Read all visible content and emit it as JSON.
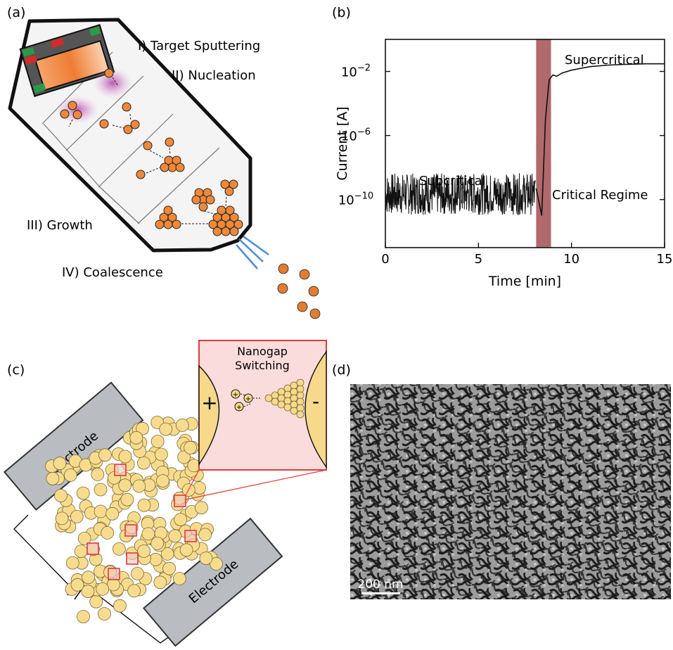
{
  "panel_a": {
    "letter": "(a)",
    "stage1": "I) Target Sputtering",
    "stage2": "II) Nucleation",
    "stage3": "III) Growth",
    "stage4": "IV) Coalescence"
  },
  "panel_b": {
    "letter": "(b)",
    "label_sub": "Subcritical",
    "label_crit": "Critical Regime",
    "label_super": "Supercritical"
  },
  "panel_c": {
    "letter": "(c)",
    "inset_title_1": "Nanogap",
    "inset_title_2": "Switching",
    "plus": "+",
    "minus": "-",
    "electrode_top": "Electrode",
    "electrode_bottom": "Electrode"
  },
  "panel_d": {
    "letter": "(d)",
    "scalebar": "200 nm"
  },
  "colors": {
    "particle_orange": "#f0883a",
    "particle_yellow": "#f8dc8e",
    "critical_band": "#a8595c",
    "inset_bg": "#fbdcdc",
    "electrode_gray": "#b9bcc1",
    "plasma_magenta": "#c04fa8"
  },
  "chart_data": {
    "type": "line",
    "xlabel": "Time [min]",
    "ylabel": "Current [A]",
    "xlim": [
      0,
      15
    ],
    "ylim": [
      1e-13,
      1.0
    ],
    "yscale": "log",
    "x_ticks": [
      0,
      5,
      10,
      15
    ],
    "y_ticks": [
      "10^-10",
      "10^-6",
      "10^-2"
    ],
    "critical_band_x": [
      8.1,
      8.9
    ],
    "series": [
      {
        "x": [
          0,
          1,
          2,
          3,
          4,
          5,
          6,
          7,
          7.8,
          8.1,
          8.4,
          8.6,
          8.8,
          9.0,
          9.2,
          9.5,
          10,
          11,
          12,
          13,
          14,
          15
        ],
        "y": [
          3e-10,
          3e-10,
          3e-10,
          3e-10,
          3e-10,
          3e-10,
          3e-10,
          3e-10,
          3e-10,
          5e-10,
          1e-11,
          1e-05,
          0.003,
          0.006,
          0.005,
          0.008,
          0.012,
          0.02,
          0.025,
          0.028,
          0.03,
          0.03
        ]
      }
    ]
  }
}
